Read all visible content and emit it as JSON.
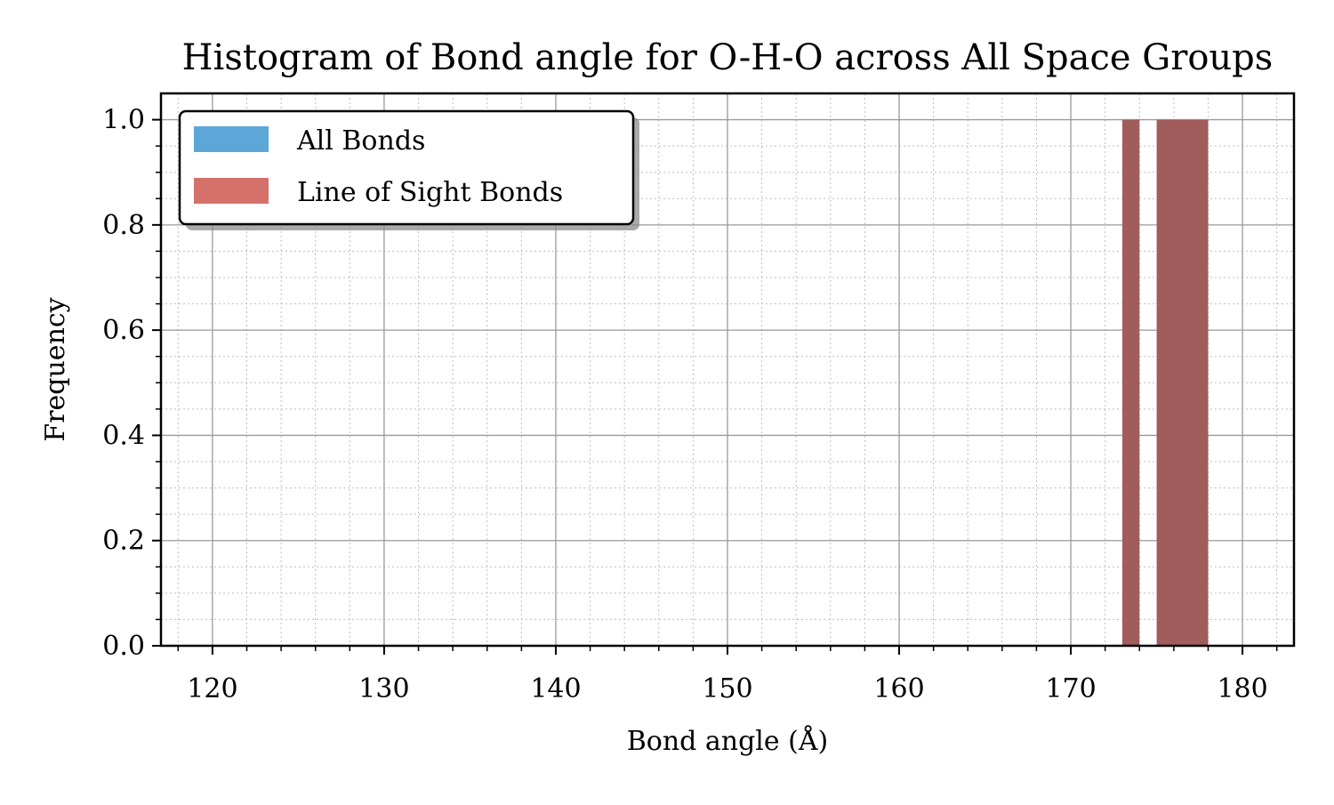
{
  "chart_data": {
    "type": "bar",
    "title": "Histogram of Bond angle for O-H-O across All Space Groups",
    "xlabel": "Bond angle (Å)",
    "ylabel": "Frequency",
    "xlim": [
      117,
      183
    ],
    "ylim": [
      0,
      1.05
    ],
    "xticks": [
      "120",
      "130",
      "140",
      "150",
      "160",
      "170",
      "180"
    ],
    "yticks": [
      "0.0",
      "0.2",
      "0.4",
      "0.6",
      "0.8",
      "1.0"
    ],
    "grid": true,
    "minor_grid": true,
    "legend_position": "top-left",
    "series": [
      {
        "name": "All Bonds",
        "color": "#5ca6d8",
        "bins": [
          {
            "x0": 173,
            "x1": 174,
            "value": 1.0
          },
          {
            "x0": 175,
            "x1": 178,
            "value": 1.0
          }
        ]
      },
      {
        "name": "Line of Sight Bonds",
        "color": "#d4716a",
        "bins": [
          {
            "x0": 173,
            "x1": 174,
            "value": 1.0
          },
          {
            "x0": 175,
            "x1": 178,
            "value": 1.0
          }
        ]
      }
    ],
    "overlap_color": "#a15c5c"
  }
}
